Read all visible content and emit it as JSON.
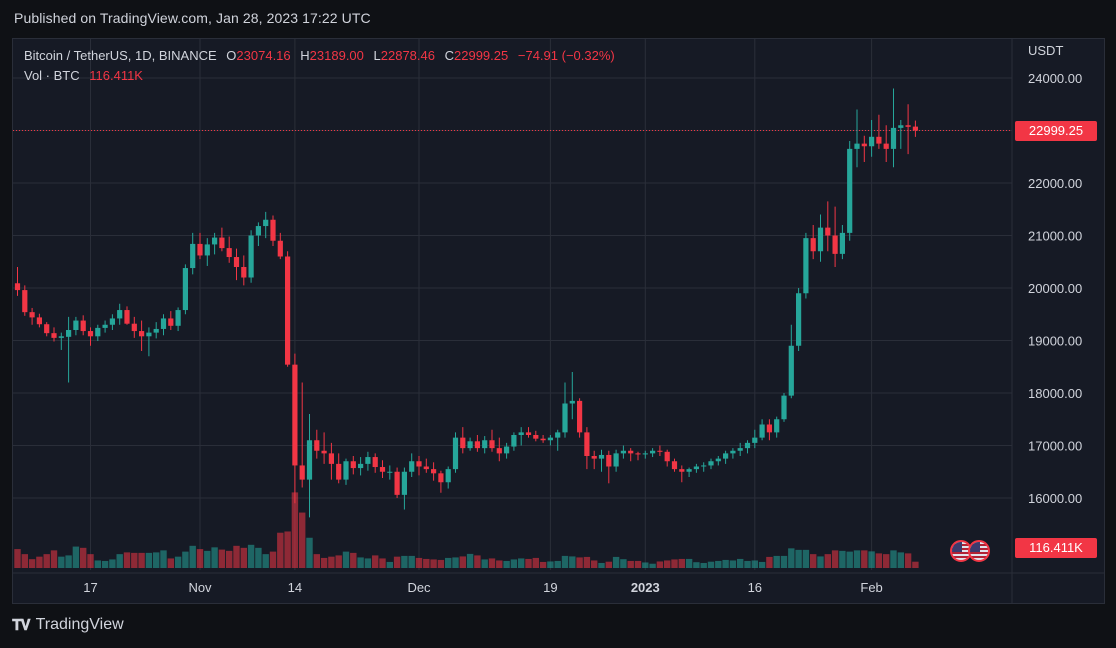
{
  "header": {
    "published": "Published on TradingView.com, Jan 28, 2023 17:22 UTC"
  },
  "legend": {
    "symbol": "Bitcoin / TetherUS, 1D, BINANCE",
    "o_label": "O",
    "o_value": "23074.16",
    "h_label": "H",
    "h_value": "23189.00",
    "l_label": "L",
    "l_value": "22878.46",
    "c_label": "C",
    "c_value": "22999.25",
    "change": "−74.91 (−0.32%)",
    "vol_label": "Vol · BTC",
    "vol_value": "116.411K"
  },
  "axis": {
    "currency": "USDT"
  },
  "price_tag": "22999.25",
  "volume_tag": "116.411K",
  "footer": {
    "brand": "TradingView"
  },
  "colors": {
    "up": "#26a69a",
    "down": "#f23645",
    "background": "#161a25",
    "grid": "#2a2e39"
  },
  "chart_data": {
    "type": "candlestick",
    "title": "Bitcoin / TetherUS, 1D, BINANCE",
    "ylabel": "USDT",
    "ylim": [
      15000,
      24500
    ],
    "y_ticks": [
      16000,
      17000,
      18000,
      19000,
      20000,
      21000,
      22000,
      23000,
      24000
    ],
    "y_tick_labels": [
      "16000.00",
      "17000.00",
      "18000.00",
      "19000.00",
      "20000.00",
      "21000.00",
      "22000.00",
      "23000.00",
      "24000.00"
    ],
    "x_tick_labels": [
      {
        "label": "17",
        "index": 10
      },
      {
        "label": "Nov",
        "index": 25
      },
      {
        "label": "14",
        "index": 38
      },
      {
        "label": "Dec",
        "index": 55
      },
      {
        "label": "19",
        "index": 73
      },
      {
        "label": "2023",
        "index": 86
      },
      {
        "label": "16",
        "index": 101
      },
      {
        "label": "Feb",
        "index": 117
      }
    ],
    "last_price": 22999.25,
    "grid": true,
    "candles": [
      [
        20090,
        20400,
        19850,
        19960,
        75
      ],
      [
        19960,
        20050,
        19470,
        19540,
        55
      ],
      [
        19540,
        19620,
        19300,
        19440,
        35
      ],
      [
        19440,
        19510,
        19250,
        19310,
        45
      ],
      [
        19310,
        19350,
        19080,
        19140,
        55
      ],
      [
        19140,
        19250,
        18980,
        19050,
        70
      ],
      [
        19050,
        19150,
        18820,
        19080,
        45
      ],
      [
        19070,
        19450,
        18200,
        19200,
        50
      ],
      [
        19200,
        19450,
        19100,
        19380,
        85
      ],
      [
        19380,
        19480,
        19100,
        19180,
        80
      ],
      [
        19180,
        19250,
        18900,
        19080,
        55
      ],
      [
        19080,
        19300,
        18990,
        19240,
        30
      ],
      [
        19240,
        19380,
        19150,
        19300,
        28
      ],
      [
        19300,
        19500,
        19200,
        19420,
        34
      ],
      [
        19420,
        19700,
        19300,
        19580,
        55
      ],
      [
        19580,
        19650,
        19300,
        19320,
        62
      ],
      [
        19320,
        19450,
        19050,
        19180,
        60
      ],
      [
        19180,
        19380,
        18800,
        19080,
        60
      ],
      [
        19080,
        19250,
        18700,
        19150,
        60
      ],
      [
        19150,
        19350,
        19040,
        19220,
        62
      ],
      [
        19220,
        19500,
        19100,
        19420,
        70
      ],
      [
        19420,
        19560,
        19200,
        19280,
        38
      ],
      [
        19280,
        19630,
        19180,
        19580,
        45
      ],
      [
        19580,
        20450,
        19500,
        20380,
        65
      ],
      [
        20380,
        21050,
        20260,
        20840,
        88
      ],
      [
        20840,
        21050,
        20550,
        20620,
        75
      ],
      [
        20620,
        20950,
        20420,
        20830,
        68
      ],
      [
        20830,
        21050,
        20640,
        20960,
        82
      ],
      [
        20960,
        21150,
        20700,
        20760,
        73
      ],
      [
        20760,
        20980,
        20480,
        20590,
        68
      ],
      [
        20590,
        20750,
        20150,
        20400,
        88
      ],
      [
        20400,
        20620,
        20050,
        20200,
        80
      ],
      [
        20200,
        21100,
        20100,
        21000,
        92
      ],
      [
        21000,
        21250,
        20800,
        21180,
        80
      ],
      [
        21180,
        21450,
        20950,
        21300,
        55
      ],
      [
        21300,
        21380,
        20800,
        20900,
        65
      ],
      [
        20900,
        21050,
        20550,
        20600,
        140
      ],
      [
        20600,
        20700,
        18500,
        18540,
        145
      ],
      [
        18540,
        18750,
        15900,
        16620,
        300
      ],
      [
        16620,
        18200,
        16200,
        16350,
        220
      ],
      [
        16350,
        17600,
        15630,
        17100,
        120
      ],
      [
        17100,
        17300,
        16750,
        16900,
        55
      ],
      [
        16900,
        17250,
        16650,
        16850,
        40
      ],
      [
        16850,
        17050,
        16350,
        16650,
        45
      ],
      [
        16650,
        16850,
        16280,
        16350,
        50
      ],
      [
        16350,
        16750,
        16250,
        16700,
        65
      ],
      [
        16700,
        16800,
        16450,
        16570,
        60
      ],
      [
        16570,
        16780,
        16430,
        16650,
        42
      ],
      [
        16650,
        16880,
        16520,
        16780,
        38
      ],
      [
        16780,
        16850,
        16480,
        16590,
        50
      ],
      [
        16590,
        16720,
        16380,
        16500,
        38
      ],
      [
        16500,
        16620,
        16350,
        16500,
        24
      ],
      [
        16500,
        16580,
        16000,
        16060,
        45
      ],
      [
        16060,
        16580,
        15780,
        16500,
        48
      ],
      [
        16500,
        16850,
        16400,
        16700,
        48
      ],
      [
        16700,
        16800,
        16430,
        16600,
        40
      ],
      [
        16600,
        16750,
        16480,
        16550,
        36
      ],
      [
        16550,
        16680,
        16330,
        16470,
        34
      ],
      [
        16470,
        16520,
        16100,
        16300,
        32
      ],
      [
        16300,
        16600,
        16180,
        16550,
        40
      ],
      [
        16550,
        17250,
        16480,
        17150,
        42
      ],
      [
        17150,
        17350,
        16850,
        16950,
        46
      ],
      [
        16950,
        17150,
        16900,
        17080,
        56
      ],
      [
        17080,
        17200,
        16880,
        16950,
        50
      ],
      [
        16950,
        17180,
        16850,
        17100,
        34
      ],
      [
        17100,
        17300,
        16880,
        16950,
        38
      ],
      [
        16950,
        17150,
        16700,
        16850,
        30
      ],
      [
        16850,
        17050,
        16750,
        16980,
        28
      ],
      [
        16980,
        17250,
        16900,
        17200,
        34
      ],
      [
        17200,
        17350,
        17000,
        17250,
        38
      ],
      [
        17250,
        17350,
        17150,
        17200,
        36
      ],
      [
        17200,
        17280,
        17080,
        17130,
        40
      ],
      [
        17130,
        17200,
        17050,
        17100,
        24
      ],
      [
        17100,
        17200,
        17000,
        17150,
        26
      ],
      [
        17150,
        17300,
        16900,
        17250,
        28
      ],
      [
        17250,
        18200,
        17150,
        17800,
        48
      ],
      [
        17800,
        18400,
        17500,
        17850,
        46
      ],
      [
        17850,
        17900,
        17150,
        17250,
        42
      ],
      [
        17250,
        17350,
        16550,
        16800,
        44
      ],
      [
        16800,
        16900,
        16550,
        16750,
        30
      ],
      [
        16750,
        16920,
        16500,
        16820,
        20
      ],
      [
        16820,
        16900,
        16280,
        16600,
        25
      ],
      [
        16600,
        16920,
        16500,
        16850,
        44
      ],
      [
        16850,
        17000,
        16750,
        16900,
        35
      ],
      [
        16900,
        16950,
        16700,
        16850,
        28
      ],
      [
        16850,
        16880,
        16720,
        16830,
        28
      ],
      [
        16830,
        16900,
        16750,
        16850,
        22
      ],
      [
        16850,
        16950,
        16780,
        16900,
        17
      ],
      [
        16900,
        17000,
        16800,
        16880,
        26
      ],
      [
        16880,
        16920,
        16600,
        16700,
        30
      ],
      [
        16700,
        16750,
        16500,
        16550,
        34
      ],
      [
        16550,
        16620,
        16300,
        16500,
        36
      ],
      [
        16500,
        16580,
        16400,
        16550,
        36
      ],
      [
        16550,
        16650,
        16480,
        16600,
        23
      ],
      [
        16600,
        16680,
        16500,
        16620,
        20
      ],
      [
        16620,
        16750,
        16550,
        16700,
        25
      ],
      [
        16700,
        16800,
        16620,
        16750,
        28
      ],
      [
        16750,
        16900,
        16650,
        16850,
        32
      ],
      [
        16850,
        16950,
        16750,
        16900,
        30
      ],
      [
        16900,
        17050,
        16800,
        16950,
        36
      ],
      [
        16950,
        17100,
        16850,
        17050,
        28
      ],
      [
        17050,
        17300,
        16950,
        17150,
        30
      ],
      [
        17150,
        17500,
        17100,
        17400,
        24
      ],
      [
        17400,
        17500,
        17100,
        17250,
        44
      ],
      [
        17250,
        17550,
        17150,
        17500,
        48
      ],
      [
        17500,
        18000,
        17450,
        17950,
        48
      ],
      [
        17950,
        19300,
        17900,
        18900,
        78
      ],
      [
        18900,
        20000,
        18800,
        19900,
        72
      ],
      [
        19900,
        21050,
        19800,
        20950,
        72
      ],
      [
        20950,
        21200,
        20550,
        20700,
        55
      ],
      [
        20700,
        21400,
        20500,
        21150,
        46
      ],
      [
        21150,
        21650,
        20700,
        21000,
        55
      ],
      [
        21000,
        21550,
        20400,
        20650,
        70
      ],
      [
        20650,
        21200,
        20550,
        21050,
        68
      ],
      [
        21050,
        22800,
        20900,
        22650,
        65
      ],
      [
        22650,
        23400,
        22300,
        22750,
        70
      ],
      [
        22750,
        22900,
        22400,
        22700,
        70
      ],
      [
        22700,
        23200,
        22500,
        22880,
        66
      ],
      [
        22880,
        23300,
        22650,
        22750,
        58
      ],
      [
        22750,
        23100,
        22400,
        22650,
        55
      ],
      [
        22650,
        23800,
        22300,
        23050,
        70
      ],
      [
        23050,
        23200,
        22650,
        23100,
        62
      ],
      [
        23100,
        23500,
        22550,
        23070,
        58
      ],
      [
        23074.16,
        23189,
        22878.46,
        22999.25,
        25
      ]
    ]
  }
}
